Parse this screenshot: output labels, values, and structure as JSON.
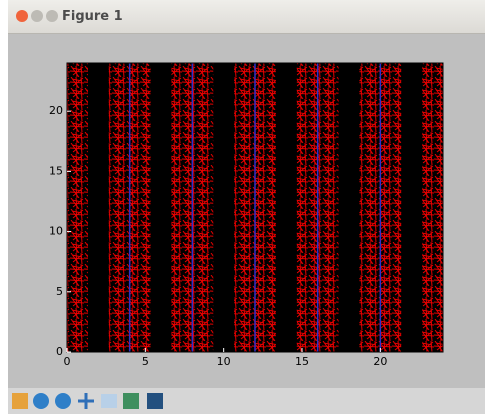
{
  "window_title": "Figure 1",
  "chart_data": {
    "type": "vlines",
    "vlines": [
      4,
      8,
      12,
      16,
      20
    ],
    "color": "#3030c8",
    "texture_color": "#ff0000",
    "background": "#000000",
    "xlim": [
      0,
      24
    ],
    "ylim": [
      0,
      24
    ],
    "xticks": [
      0,
      5,
      10,
      15,
      20
    ],
    "yticks": [
      0,
      5,
      10,
      15,
      20
    ]
  }
}
